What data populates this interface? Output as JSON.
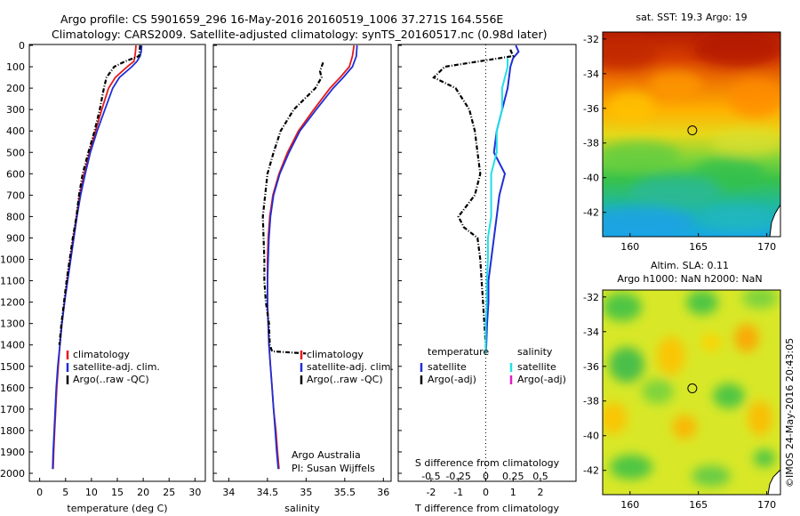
{
  "header": {
    "line1": "Argo profile: CS 5901659_296 16-May-2016 20160519_1006 37.271S 164.556E",
    "line2": "Climatology: CARS2009. Satellite-adjusted climatology: synTS_20160517.nc (0.98d later)"
  },
  "colors": {
    "climatology": "#e41a1c",
    "satellite": "#1f2fd6",
    "argo": "#000000",
    "satellite_diff": "#1fe0e6",
    "argo_adj_salinity": "#e020c0"
  },
  "depth_ticks": [
    "0",
    "100",
    "200",
    "300",
    "400",
    "500",
    "600",
    "700",
    "800",
    "900",
    "1000",
    "1100",
    "1200",
    "1300",
    "1400",
    "1500",
    "1600",
    "1700",
    "1800",
    "1900",
    "2000"
  ],
  "chart_data": [
    {
      "type": "line",
      "panel": "temperature",
      "xlabel": "temperature (deg C)",
      "ylabel": "",
      "xlim": [
        -2,
        32
      ],
      "ylim": [
        2080,
        0
      ],
      "xticks": [
        "0",
        "5",
        "10",
        "15",
        "20",
        "25",
        "30"
      ],
      "legend": [
        "climatology",
        "satellite-adj. clim.",
        "Argo(..raw -QC)"
      ],
      "series": [
        {
          "name": "climatology",
          "depth": [
            0,
            30,
            50,
            75,
            100,
            150,
            200,
            300,
            400,
            500,
            600,
            700,
            800,
            900,
            1000,
            1100,
            1200,
            1300,
            1400,
            1500,
            1600,
            1700,
            1800,
            1900,
            1980
          ],
          "values": [
            18.6,
            18.5,
            18.4,
            18.2,
            16.9,
            14.6,
            13.3,
            12.0,
            10.8,
            9.6,
            8.6,
            7.7,
            7.1,
            6.5,
            5.9,
            5.3,
            4.8,
            4.3,
            3.9,
            3.6,
            3.3,
            3.1,
            2.9,
            2.7,
            2.6
          ]
        },
        {
          "name": "satellite-adj. clim.",
          "depth": [
            0,
            30,
            50,
            75,
            100,
            150,
            200,
            300,
            400,
            500,
            600,
            700,
            800,
            900,
            1000,
            1100,
            1200,
            1300,
            1400,
            1500,
            1600,
            1700,
            1800,
            1900,
            1980
          ],
          "values": [
            19.7,
            19.6,
            19.4,
            18.8,
            17.8,
            15.4,
            14.1,
            12.6,
            11.1,
            9.8,
            8.8,
            7.9,
            7.2,
            6.6,
            6.0,
            5.4,
            4.8,
            4.3,
            3.9,
            3.5,
            3.2,
            3.0,
            2.8,
            2.6,
            2.5
          ]
        },
        {
          "name": "Argo(..raw -QC)",
          "depth": [
            0,
            30,
            50,
            75,
            100,
            150,
            200,
            300,
            400,
            500,
            600,
            700,
            800,
            900,
            1000,
            1100,
            1200,
            1300,
            1400
          ],
          "values": [
            19.4,
            19.3,
            19.2,
            16.5,
            14.4,
            12.9,
            12.4,
            11.6,
            10.6,
            9.4,
            8.3,
            7.6,
            7.1,
            6.4,
            5.8,
            5.2,
            4.7,
            4.2,
            3.8
          ]
        }
      ]
    },
    {
      "type": "line",
      "panel": "salinity",
      "xlabel": "salinity",
      "ylabel": "",
      "xlim": [
        33.8,
        36.1
      ],
      "ylim": [
        2080,
        0
      ],
      "xticks": [
        "34",
        "34.5",
        "35",
        "35.5",
        "36"
      ],
      "legend": [
        "climatology",
        "satellite-adj. clim.",
        "Argo(..raw -QC)"
      ],
      "annotation": [
        "Argo Australia",
        "PI: Susan Wijffels"
      ],
      "series": [
        {
          "name": "climatology",
          "depth": [
            0,
            50,
            100,
            150,
            200,
            300,
            400,
            500,
            600,
            700,
            800,
            900,
            1000,
            1100,
            1200,
            1300,
            1400,
            1500,
            1600,
            1700,
            1800,
            1900,
            1980
          ],
          "values": [
            35.62,
            35.6,
            35.56,
            35.44,
            35.31,
            35.1,
            34.9,
            34.76,
            34.65,
            34.57,
            34.53,
            34.51,
            34.5,
            34.5,
            34.5,
            34.51,
            34.52,
            34.54,
            34.56,
            34.58,
            34.61,
            34.63,
            34.65
          ]
        },
        {
          "name": "satellite-adj. clim.",
          "depth": [
            0,
            50,
            100,
            150,
            200,
            300,
            400,
            500,
            600,
            700,
            800,
            900,
            1000,
            1100,
            1200,
            1300,
            1400,
            1500,
            1600,
            1700,
            1800,
            1900,
            1980
          ],
          "values": [
            35.66,
            35.65,
            35.6,
            35.48,
            35.35,
            35.13,
            34.92,
            34.78,
            34.66,
            34.58,
            34.54,
            34.52,
            34.51,
            34.5,
            34.5,
            34.51,
            34.52,
            34.54,
            34.56,
            34.58,
            34.6,
            34.62,
            34.64
          ]
        },
        {
          "name": "Argo(..raw -QC)",
          "depth": [
            80,
            120,
            150,
            200,
            300,
            400,
            500,
            600,
            700,
            800,
            900,
            1000,
            1100,
            1200,
            1300,
            1400,
            1430,
            1440
          ],
          "values": [
            35.22,
            35.18,
            35.2,
            35.12,
            34.84,
            34.67,
            34.58,
            34.5,
            34.47,
            34.44,
            34.45,
            34.46,
            34.46,
            34.48,
            34.52,
            34.53,
            34.56,
            35.0
          ]
        }
      ]
    },
    {
      "type": "line",
      "panel": "difference",
      "xlabel": "T difference from climatology",
      "x2label": "S difference from climatology",
      "xlim": [
        -3.2,
        3.3
      ],
      "ylim": [
        2080,
        0
      ],
      "xticks": [
        "-2",
        "-1",
        "0",
        "1",
        "2"
      ],
      "x2ticks": [
        "-0.5",
        "-0.25",
        "0",
        "0.25",
        "0.5"
      ],
      "legend_temperature_title": "temperature",
      "legend_salinity_title": "salinity",
      "legend_temperature": [
        "satellite",
        "Argo(-adj)"
      ],
      "legend_salinity": [
        "satellite",
        "Argo(-adj)"
      ],
      "series": [
        {
          "name": "temperature satellite",
          "depth": [
            0,
            30,
            60,
            100,
            200,
            300,
            400,
            500,
            600,
            700,
            800,
            900,
            1000,
            1100,
            1200,
            1300,
            1400,
            1440
          ],
          "values": [
            1.1,
            1.2,
            1.0,
            0.9,
            0.8,
            0.6,
            0.4,
            0.3,
            0.7,
            0.5,
            0.4,
            0.3,
            0.2,
            0.1,
            0.1,
            0.05,
            0.02,
            0.0
          ]
        },
        {
          "name": "temperature Argo(-adj)",
          "depth": [
            20,
            50,
            80,
            100,
            150,
            200,
            300,
            400,
            500,
            600,
            700,
            800,
            850,
            900,
            1000,
            1100,
            1200,
            1300,
            1400,
            1440
          ],
          "values": [
            0.9,
            1.0,
            -0.5,
            -1.5,
            -1.9,
            -1.1,
            -0.6,
            -0.4,
            -0.3,
            -0.2,
            -0.4,
            -1.0,
            -0.8,
            -0.3,
            -0.2,
            -0.15,
            -0.1,
            -0.05,
            0.0,
            0.0
          ]
        },
        {
          "name": "salinity satellite",
          "depth": [
            60,
            100,
            200,
            300,
            400,
            500,
            600,
            700,
            800,
            900,
            1000,
            1100,
            1200,
            1300,
            1400,
            1440
          ],
          "values": [
            0.2,
            0.2,
            0.15,
            0.15,
            0.1,
            0.1,
            0.05,
            0.05,
            0.05,
            0.02,
            0.02,
            0.01,
            0.01,
            0.0,
            0.0,
            0.0
          ]
        }
      ]
    }
  ],
  "maps": [
    {
      "title": "sat. SST: 19.3 Argo: 19",
      "xticks": [
        "160",
        "165",
        "170"
      ],
      "yticks": [
        "-32",
        "-34",
        "-36",
        "-38",
        "-40",
        "-42"
      ],
      "argo_lon": 164.556,
      "argo_lat": -37.271,
      "lon_range": [
        158,
        171
      ],
      "lat_range": [
        -43.4,
        -31.6
      ]
    },
    {
      "title_line1": "Altim. SLA: 0.11",
      "title_line2": "Argo h1000: NaN h2000: NaN",
      "xticks": [
        "160",
        "165",
        "170"
      ],
      "yticks": [
        "-32",
        "-34",
        "-36",
        "-38",
        "-40",
        "-42"
      ],
      "argo_lon": 164.556,
      "argo_lat": -37.271,
      "lon_range": [
        158,
        171
      ],
      "lat_range": [
        -43.4,
        -31.6
      ]
    }
  ],
  "credit": "©IMOS 24-May-2016 20:43:05"
}
